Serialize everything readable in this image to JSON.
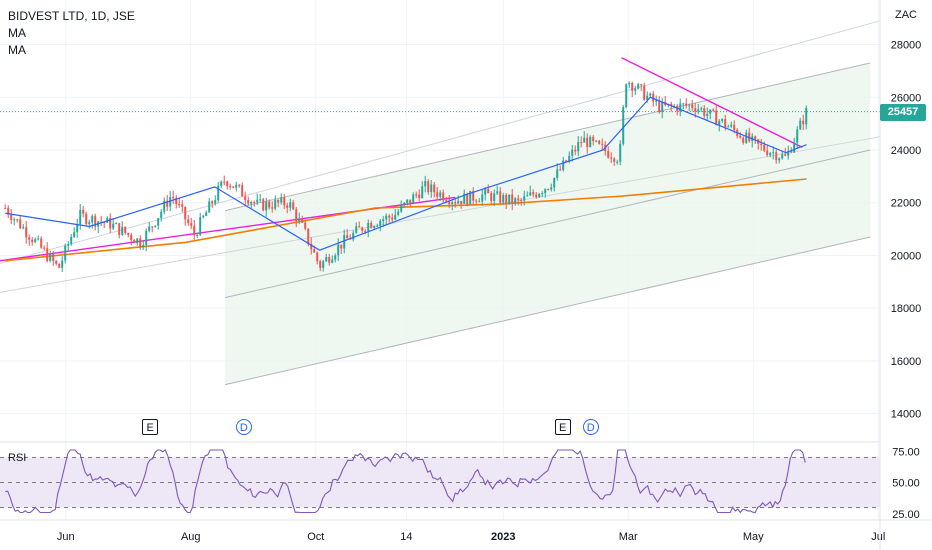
{
  "legend": {
    "symbol": "BIDVEST LTD, 1D, JSE",
    "ma1": "MA",
    "ma2": "MA"
  },
  "last_price_label": "25457",
  "rsi_label": "RSI",
  "events": [
    {
      "type": "E",
      "month_index": 2.45
    },
    {
      "type": "D",
      "month_index": 3.95
    },
    {
      "type": "E",
      "month_index": 9.05
    },
    {
      "type": "D",
      "month_index": 9.5
    }
  ],
  "colors": {
    "up": "#26a69a",
    "down": "#ef5350",
    "ma_fast": "#2962ff",
    "ma_slow": "#f57c00",
    "trendline": "#e91ee0",
    "price_line": "#26a69a",
    "rsi_line": "#7e57c2",
    "rsi_band": "#ede7f6",
    "channel_fill": "#e8f5e9",
    "grid": "#f0f3fa",
    "axis_text": "#131722"
  },
  "chart_data": {
    "type": "line",
    "currency": "ZAC",
    "price_axis": {
      "ticks": [
        28000,
        26000,
        24000,
        22000,
        20000,
        18000,
        16000,
        14000
      ],
      "ylim": [
        13000,
        29500
      ]
    },
    "time_axis": {
      "ticks": [
        "Jun",
        "Aug",
        "Oct",
        "14",
        "2023",
        "Mar",
        "May",
        "Jul"
      ]
    },
    "price_series": {
      "name": "BIDVEST LTD",
      "approx_close_path": [
        [
          "2022-05-05",
          21800
        ],
        [
          "2022-05-20",
          20500
        ],
        [
          "2022-05-31",
          19500
        ],
        [
          "2022-06-10",
          21500
        ],
        [
          "2022-06-25",
          21200
        ],
        [
          "2022-07-10",
          20500
        ],
        [
          "2022-07-25",
          22300
        ],
        [
          "2022-08-05",
          20800
        ],
        [
          "2022-08-20",
          22900
        ],
        [
          "2022-09-05",
          21900
        ],
        [
          "2022-09-20",
          22000
        ],
        [
          "2022-09-27",
          21000
        ],
        [
          "2022-10-05",
          19600
        ],
        [
          "2022-10-15",
          20400
        ],
        [
          "2022-10-28",
          21200
        ],
        [
          "2022-11-10",
          21500
        ],
        [
          "2022-11-25",
          22600
        ],
        [
          "2022-12-10",
          22100
        ],
        [
          "2022-12-25",
          22300
        ],
        [
          "2023-01-10",
          22000
        ],
        [
          "2023-01-25",
          22700
        ],
        [
          "2023-02-10",
          24400
        ],
        [
          "2023-02-28",
          23700
        ],
        [
          "2023-03-03",
          26700
        ],
        [
          "2023-03-20",
          25600
        ],
        [
          "2023-04-05",
          25700
        ],
        [
          "2023-04-20",
          25000
        ],
        [
          "2023-05-05",
          24200
        ],
        [
          "2023-05-20",
          23700
        ],
        [
          "2023-05-30",
          25457
        ]
      ],
      "last": 25457
    },
    "moving_averages": [
      {
        "approx_path": [
          [
            "2022-05-05",
            21600
          ],
          [
            "2022-06-15",
            21100
          ],
          [
            "2022-08-15",
            22600
          ],
          [
            "2022-10-05",
            20200
          ],
          [
            "2022-12-15",
            22300
          ],
          [
            "2023-02-20",
            24000
          ],
          [
            "2023-03-15",
            26000
          ],
          [
            "2023-05-20",
            23900
          ],
          [
            "2023-05-30",
            24200
          ]
        ]
      },
      {
        "approx_path": [
          [
            "2022-05-05",
            19800
          ],
          [
            "2022-08-01",
            20500
          ],
          [
            "2022-11-01",
            21800
          ],
          [
            "2023-01-01",
            21950
          ],
          [
            "2023-03-01",
            22250
          ],
          [
            "2023-05-30",
            22900
          ]
        ]
      }
    ],
    "rsi": {
      "ticks": [
        75.0,
        50.0,
        25.0
      ],
      "band": [
        30,
        70
      ],
      "last": 66
    }
  }
}
